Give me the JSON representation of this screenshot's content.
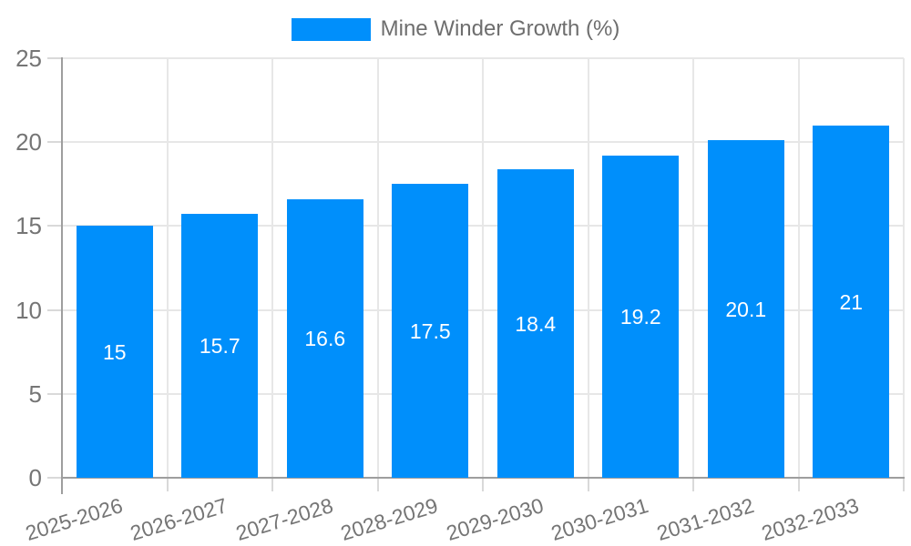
{
  "legend": {
    "label": "Mine Winder Growth (%)"
  },
  "chart_data": {
    "type": "bar",
    "title": "Mine Winder Growth (%)",
    "xlabel": "",
    "ylabel": "",
    "categories": [
      "2025-2026",
      "2026-2027",
      "2027-2028",
      "2028-2029",
      "2029-2030",
      "2030-2031",
      "2031-2032",
      "2032-2033"
    ],
    "series": [
      {
        "name": "Mine Winder Growth (%)",
        "color": "#008FFB",
        "values": [
          15,
          15.7,
          16.6,
          17.5,
          18.4,
          19.2,
          20.1,
          21
        ],
        "labels": [
          "15",
          "15.7",
          "16.6",
          "17.5",
          "18.4",
          "19.2",
          "20.1",
          "21"
        ]
      }
    ],
    "ylim": [
      0,
      25
    ],
    "y_ticks": [
      0,
      5,
      10,
      15,
      20,
      25
    ],
    "grid": true,
    "legend_position": "top",
    "value_labels_inside_bars": true
  },
  "colors": {
    "bar": "#008FFB",
    "grid_line": "#e7e7e7",
    "axis_line": "#9e9e9e",
    "tick": "#d9d9d9",
    "axis_text": "#757575",
    "legend_text": "#6e6e6e",
    "bar_label": "#ffffff",
    "background": "#ffffff"
  }
}
